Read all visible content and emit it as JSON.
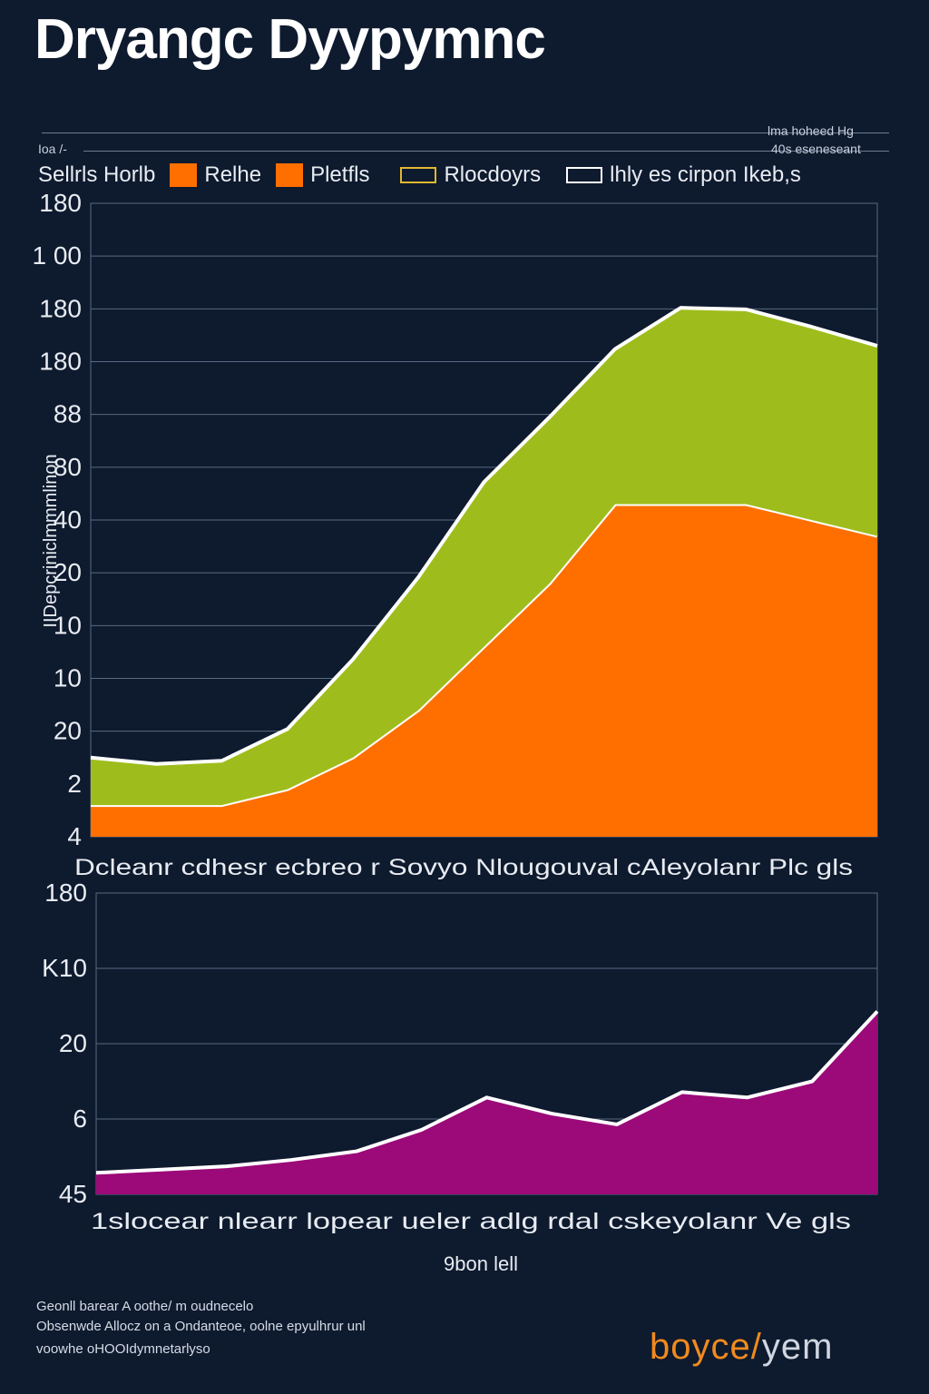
{
  "title": "Dryangc Dyypymnc",
  "top_notes": {
    "left": "Ioa /-",
    "right_1": "lma hoheed Hg",
    "right_2": "40s eseneseant"
  },
  "legend": {
    "prefix": "Sellrls Horlb",
    "items": [
      {
        "label": "Relhe",
        "color": "#ff6f00",
        "style": "filled"
      },
      {
        "label": "Pletfls",
        "color": "#ff6f00",
        "style": "filled"
      },
      {
        "label": "Rlocdoyrs",
        "color": "#e0b830",
        "style": "outline"
      },
      {
        "label": "lhly es cirpon Ikeb,s",
        "color": "#ffffff",
        "style": "outline"
      }
    ]
  },
  "chart_data": [
    {
      "type": "area",
      "stacked": true,
      "ylabel": "IIDepcriniclmmmlinon",
      "xlabel": "Dcleanr cdhesr ecbreo r Sovyo Nlougouval cAleyolanr Plc gls",
      "yticks": [
        "180",
        "1 00",
        "180",
        "180",
        "88",
        "80",
        "40",
        "20",
        "10",
        "10",
        "20",
        "2",
        "4"
      ],
      "x": [
        0,
        1,
        2,
        3,
        4,
        5,
        6,
        7,
        8,
        9,
        10,
        11,
        12
      ],
      "series": [
        {
          "color": "#ff6f00",
          "values": [
            2,
            2,
            2,
            3,
            5,
            8,
            12,
            16,
            21,
            21,
            21,
            20,
            19
          ]
        },
        {
          "color": "#9ebd1c",
          "values": [
            3,
            2.6,
            2.8,
            3.8,
            6.2,
            8.4,
            10.4,
            10.5,
            9.8,
            12.4,
            12.3,
            12.2,
            12
          ]
        }
      ],
      "grid": true
    },
    {
      "type": "area",
      "xlabel": "1slocear nlearr lopear ueler adlg rdal cskeyolanr Ve gls",
      "xlabel2": "9bon lell",
      "yticks": [
        "180",
        "K10",
        "20",
        "6",
        "45"
      ],
      "x": [
        0,
        1,
        2,
        3,
        4,
        5,
        6,
        7,
        8,
        9,
        10,
        11,
        12
      ],
      "series": [
        {
          "color": "#9b0a78",
          "values": [
            2,
            2.3,
            2.6,
            3.2,
            4,
            6,
            9,
            7.5,
            6.5,
            9.5,
            9,
            10.5,
            17
          ]
        }
      ],
      "grid": true
    }
  ],
  "footnotes": [
    "Geonll barear A oothe/ m oudnecelo",
    "Obsenwde Allocz on a Ondanteoe, oolne epyulhrur unl",
    "voowhe oHOOIdymnetarlyso"
  ],
  "brand": {
    "part1": "boyce",
    "sep": "/",
    "part2": "yem",
    "color1": "#f08a1e",
    "color2": "#d0d6e0"
  },
  "colors": {
    "background": "#0e1a2e",
    "grid": "#5a6a82",
    "outline": "#ffffff"
  }
}
